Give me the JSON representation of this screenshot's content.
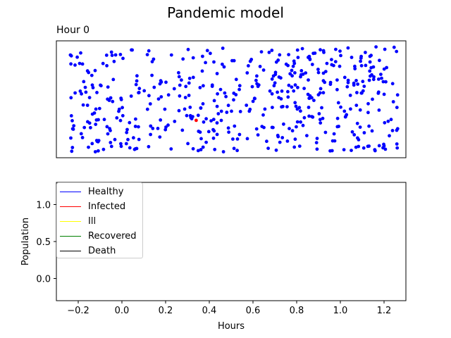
{
  "figure": {
    "title": "Pandemic model",
    "subtitle": "Hour 0"
  },
  "chart_data": [
    {
      "type": "scatter",
      "title": "Hour 0",
      "axes_visible": false,
      "point_color": "#0000ff",
      "highlight_color": "#ff0000",
      "highlight_point": [
        0.4,
        0.32
      ],
      "point_count": 500,
      "xlim": [
        0,
        1
      ],
      "ylim": [
        0,
        1
      ]
    },
    {
      "type": "line",
      "xlabel": "Hours",
      "ylabel": "Population",
      "xlim": [
        -0.3,
        1.3
      ],
      "ylim": [
        -0.3,
        1.3
      ],
      "x_ticks": [
        -0.2,
        0.0,
        0.2,
        0.4,
        0.6,
        0.8,
        1.0,
        1.2
      ],
      "x_tick_labels": [
        "−0.2",
        "0.0",
        "0.2",
        "0.4",
        "0.6",
        "0.8",
        "1.0",
        "1.2"
      ],
      "y_ticks": [
        0.0,
        0.5,
        1.0
      ],
      "y_tick_labels": [
        "0.0",
        "0.5",
        "1.0"
      ],
      "legend_position": "upper-left",
      "series": [
        {
          "name": "Healthy",
          "color": "#0000ff",
          "values": []
        },
        {
          "name": "Infected",
          "color": "#ff0000",
          "values": []
        },
        {
          "name": "Ill",
          "color": "#ffff00",
          "values": []
        },
        {
          "name": "Recovered",
          "color": "#008000",
          "values": []
        },
        {
          "name": "Death",
          "color": "#000000",
          "values": []
        }
      ]
    }
  ]
}
